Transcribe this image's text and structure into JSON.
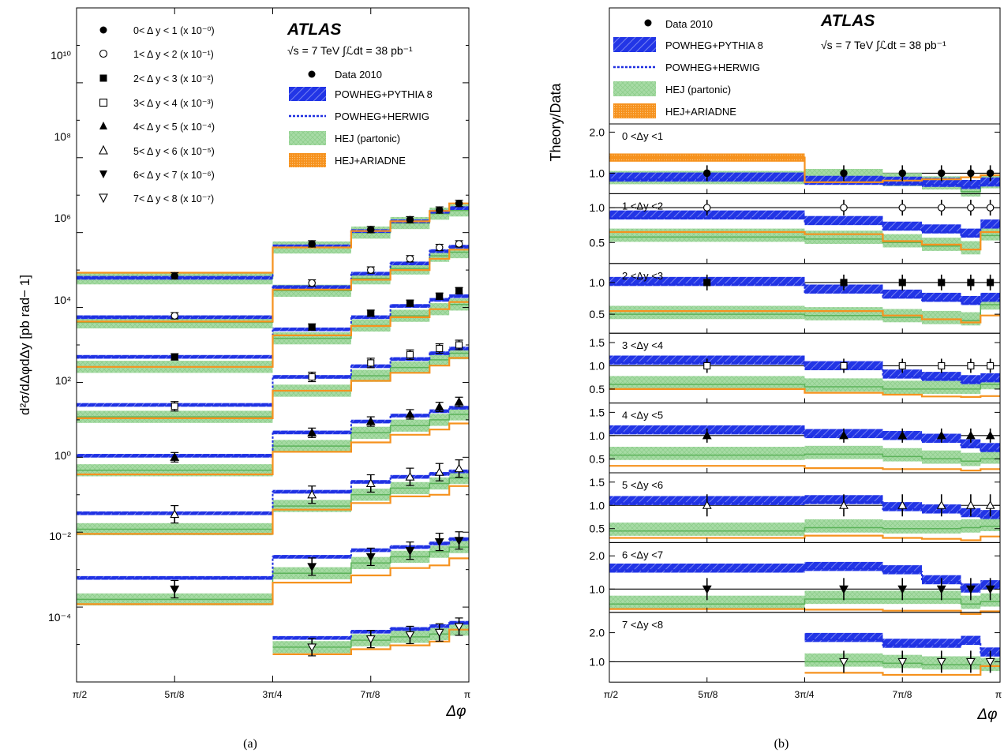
{
  "colors": {
    "data": "#000000",
    "powheg_pythia": "#1f2fe0",
    "powheg_herwig": "#1f2fe0",
    "hej_partonic": "#7cc47a",
    "hej_ariadne": "#f6921e"
  },
  "left_panel": {
    "ylabel": "d²σ/dΔφdΔy [pb rad− 1]",
    "xlabel": "Δφ",
    "caption": "(a)",
    "atlas_label": "ATLAS",
    "energy_label": "√s = 7 TeV  ∫ℒdt = 38 pb⁻¹",
    "y_tick_labels": [
      "10¹⁰",
      "10⁸",
      "10⁶",
      "10⁴",
      "10²",
      "10⁰",
      "10⁻²",
      "10⁻⁴"
    ],
    "x_tick_labels": [
      "π/2",
      "5π/8",
      "3π/4",
      "7π/8",
      "π"
    ],
    "marker_legend": [
      {
        "label": "0< Δ y < 1 (x 10⁻⁰)",
        "marker": "filled-circle"
      },
      {
        "label": "1< Δ y < 2 (x 10⁻¹)",
        "marker": "open-circle"
      },
      {
        "label": "2< Δ y < 3 (x 10⁻²)",
        "marker": "filled-square"
      },
      {
        "label": "3< Δ y < 4 (x 10⁻³)",
        "marker": "open-square"
      },
      {
        "label": "4< Δ y < 5 (x 10⁻⁴)",
        "marker": "filled-triangle-up"
      },
      {
        "label": "5< Δ y < 6 (x 10⁻⁵)",
        "marker": "open-triangle-up"
      },
      {
        "label": "6< Δ y < 7 (x 10⁻⁶)",
        "marker": "filled-triangle-down"
      },
      {
        "label": "7< Δ y < 8 (x 10⁻⁷)",
        "marker": "open-triangle-down"
      }
    ],
    "model_legend": [
      "Data 2010",
      "POWHEG+PYTHIA 8",
      "POWHEG+HERWIG",
      "HEJ (partonic)",
      "HEJ+ARIADNE"
    ]
  },
  "right_panel": {
    "ylabel": "Theory/Data",
    "xlabel": "Δφ",
    "caption": "(b)",
    "atlas_label": "ATLAS",
    "energy_label": "√s = 7 TeV  ∫ℒdt = 38 pb⁻¹",
    "x_tick_labels": [
      "π/2",
      "5π/8",
      "3π/4",
      "7π/8",
      "π"
    ],
    "model_legend": [
      "Data 2010",
      "POWHEG+PYTHIA 8",
      "POWHEG+HERWIG",
      "HEJ (partonic)",
      "HEJ+ARIADNE"
    ]
  },
  "chart_data": [
    {
      "type": "line",
      "title": "",
      "xlabel": "Δφ",
      "ylabel": "d²σ/dΔφdΔy [pb rad− 1]",
      "yscale": "log",
      "xlim": [
        1.5708,
        3.1416
      ],
      "ylim": [
        1e-06,
        1000000000000.0
      ],
      "bin_edges": [
        1.5708,
        2.3562,
        2.6704,
        2.8274,
        2.9845,
        3.0631,
        3.1416
      ],
      "bin_centers": [
        1.9635,
        2.5133,
        2.7489,
        2.906,
        3.0238,
        3.1023
      ],
      "series": [
        {
          "name": "0< Δ y < 1 (x 10⁻⁰)",
          "data": [
            70000,
            500000,
            1200000,
            2200000,
            4000000,
            6000000
          ],
          "powheg_pythia": [
            62000,
            430000,
            1100000,
            2000000,
            3600000,
            4500000
          ],
          "hej_partonic": [
            60000,
            400000,
            1000000,
            1800000,
            3200000,
            3900000
          ],
          "hej_ariadne": [
            85000,
            400000,
            1100000,
            2000000,
            3800000,
            6000000
          ]
        },
        {
          "name": "1< Δ y < 2 (x 10⁻¹)",
          "data": [
            6000,
            45000,
            100000,
            200000,
            400000,
            500000
          ],
          "powheg_pythia": [
            5500,
            35000,
            80000,
            150000,
            320000,
            420000
          ],
          "hej_partonic": [
            4000,
            28000,
            60000,
            110000,
            240000,
            300000
          ],
          "hej_ariadne": [
            4200,
            30000,
            55000,
            100000,
            200000,
            350000
          ]
        },
        {
          "name": "2< Δ y < 3 (x 10⁻²)",
          "data": [
            480,
            3000,
            7000,
            13000,
            20000,
            28000
          ],
          "powheg_pythia": [
            480,
            2600,
            5500,
            11000,
            16000,
            20000
          ],
          "hej_partonic": [
            260,
            1500,
            3300,
            6000,
            9000,
            12000
          ],
          "hej_ariadne": [
            260,
            1800,
            3200,
            5500,
            9000,
            14000
          ]
        },
        {
          "name": "3< Δ y < 4 (x 10⁻³)",
          "data": [
            23,
            140,
            330,
            550,
            800,
            1000
          ],
          "powheg_pythia": [
            25,
            140,
            270,
            420,
            600,
            800
          ],
          "hej_partonic": [
            12,
            60,
            150,
            250,
            400,
            600
          ],
          "hej_ariadne": [
            11,
            60,
            110,
            180,
            280,
            450
          ]
        },
        {
          "name": "4< Δ y < 5 (x 10⁻⁴)",
          "data": [
            1.0,
            4.5,
            9.0,
            14,
            22,
            30
          ],
          "powheg_pythia": [
            1.1,
            4.6,
            9.0,
            13,
            17,
            21
          ],
          "hej_partonic": [
            0.45,
            2.0,
            4.5,
            7.0,
            10,
            14
          ],
          "hej_ariadne": [
            0.35,
            1.4,
            2.5,
            4.0,
            5.5,
            8.0
          ]
        },
        {
          "name": "5< Δ y < 6 (x 10⁻⁵)",
          "data": [
            0.03,
            0.1,
            0.2,
            0.3,
            0.4,
            0.5
          ],
          "powheg_pythia": [
            0.032,
            0.12,
            0.22,
            0.3,
            0.36,
            0.42
          ],
          "hej_partonic": [
            0.012,
            0.05,
            0.1,
            0.15,
            0.2,
            0.28
          ],
          "hej_ariadne": [
            0.009,
            0.04,
            0.06,
            0.09,
            0.1,
            0.17
          ]
        },
        {
          "name": "6< Δ y < 7 (x 10⁻⁶)",
          "data": [
            0.0003,
            0.0012,
            0.0022,
            0.0032,
            0.0055,
            0.006
          ],
          "powheg_pythia": [
            0.0006,
            0.0022,
            0.0033,
            0.004,
            0.005,
            0.0065
          ],
          "hej_partonic": [
            0.00016,
            0.0008,
            0.0015,
            0.0022,
            0.003,
            0.004
          ],
          "hej_ariadne": [
            0.00012,
            0.00045,
            0.0007,
            0.0011,
            0.0013,
            0.002
          ]
        },
        {
          "name": "7< Δ y < 8 (x 10⁻⁷)",
          "data": [
            null,
            8.5e-06,
            1.4e-05,
            1.8e-05,
            2.1e-05,
            3e-05
          ],
          "powheg_pythia": [
            null,
            1.5e-05,
            2.2e-05,
            2.6e-05,
            3.1e-05,
            3.8e-05
          ],
          "hej_partonic": [
            null,
            8.5e-06,
            1.3e-05,
            1.6e-05,
            1.9e-05,
            2.5e-05
          ],
          "hej_ariadne": [
            null,
            5.5e-06,
            7.5e-06,
            9.5e-06,
            1.2e-05,
            2.5e-05
          ]
        }
      ]
    },
    {
      "type": "line",
      "title": "",
      "xlabel": "Δφ",
      "ylabel": "Theory/Data",
      "xlim": [
        1.5708,
        3.1416
      ],
      "bin_edges": [
        1.5708,
        2.3562,
        2.6704,
        2.8274,
        2.9845,
        3.0631,
        3.1416
      ],
      "bin_centers": [
        1.9635,
        2.5133,
        2.7489,
        2.906,
        3.0238,
        3.1023
      ],
      "series": [
        {
          "name": "0 <Δy <1",
          "ylim": [
            0.5,
            2.2
          ],
          "ticks": [
            "2.0",
            "1.0"
          ],
          "powheg_pythia": [
            0.88,
            0.8,
            0.78,
            0.75,
            0.7,
            0.76
          ],
          "hej_partonic": [
            0.85,
            0.9,
            0.8,
            0.72,
            0.55,
            0.75
          ],
          "hej_ariadne": [
            1.38,
            0.78,
            0.82,
            0.85,
            0.9,
            0.95
          ]
        },
        {
          "name": "1 <Δy <2",
          "ylim": [
            0.2,
            1.2
          ],
          "ticks": [
            "1.0",
            "0.5"
          ],
          "powheg_pythia": [
            0.88,
            0.8,
            0.72,
            0.68,
            0.62,
            0.75
          ],
          "hej_partonic": [
            0.58,
            0.55,
            0.5,
            0.45,
            0.4,
            0.6
          ],
          "hej_ariadne": [
            0.65,
            0.62,
            0.52,
            0.47,
            0.4,
            0.65
          ]
        },
        {
          "name": "2 <Δy <3",
          "ylim": [
            0.2,
            1.3
          ],
          "ticks": [
            "1.0",
            "0.5"
          ],
          "powheg_pythia": [
            1.0,
            0.88,
            0.8,
            0.75,
            0.7,
            0.75
          ],
          "hej_partonic": [
            0.5,
            0.48,
            0.45,
            0.42,
            0.4,
            0.65
          ],
          "hej_ariadne": [
            0.55,
            0.55,
            0.48,
            0.42,
            0.37,
            0.48
          ]
        },
        {
          "name": "3 <Δy <4",
          "ylim": [
            0.2,
            1.7
          ],
          "ticks": [
            "1.5",
            "1.0",
            "0.5"
          ],
          "powheg_pythia": [
            1.1,
            0.98,
            0.8,
            0.75,
            0.68,
            0.72
          ],
          "hej_partonic": [
            0.6,
            0.55,
            0.5,
            0.5,
            0.5,
            0.6
          ],
          "hej_ariadne": [
            0.5,
            0.42,
            0.38,
            0.34,
            0.33,
            0.35
          ]
        },
        {
          "name": "4 <Δy <5",
          "ylim": [
            0.2,
            1.7
          ],
          "ticks": [
            "1.5",
            "1.0",
            "0.5"
          ],
          "powheg_pythia": [
            1.1,
            1.02,
            0.98,
            0.92,
            0.8,
            0.72
          ],
          "hej_partonic": [
            0.58,
            0.6,
            0.55,
            0.5,
            0.45,
            0.5
          ],
          "hej_ariadne": [
            0.35,
            0.3,
            0.28,
            0.28,
            0.25,
            0.28
          ]
        },
        {
          "name": "5 <Δy <6",
          "ylim": [
            0.2,
            1.7
          ],
          "ticks": [
            "1.5",
            "1.0",
            "0.5"
          ],
          "powheg_pythia": [
            1.08,
            1.1,
            0.95,
            0.9,
            0.82,
            0.78
          ],
          "hej_partonic": [
            0.45,
            0.52,
            0.5,
            0.5,
            0.52,
            0.55
          ],
          "hej_ariadne": [
            0.3,
            0.35,
            0.3,
            0.28,
            0.25,
            0.33
          ]
        },
        {
          "name": "6 <Δy <7",
          "ylim": [
            0.3,
            2.4
          ],
          "ticks": [
            "2.0",
            "1.0"
          ],
          "powheg_pythia": [
            1.6,
            1.65,
            1.55,
            1.25,
            1.0,
            1.1
          ],
          "hej_partonic": [
            0.55,
            0.7,
            0.7,
            0.7,
            0.55,
            0.62
          ],
          "hej_ariadne": [
            0.4,
            0.38,
            0.35,
            0.35,
            0.25,
            0.33
          ]
        },
        {
          "name": "7 <Δy <8",
          "ylim": [
            0.3,
            2.7
          ],
          "ticks": [
            "2.0",
            "1.0"
          ],
          "powheg_pythia": [
            null,
            1.8,
            1.6,
            1.6,
            1.7,
            1.3
          ],
          "hej_partonic": [
            null,
            1.0,
            0.95,
            0.9,
            0.9,
            0.85
          ],
          "hej_ariadne": [
            null,
            0.62,
            0.55,
            0.55,
            0.55,
            0.85
          ]
        }
      ]
    }
  ]
}
